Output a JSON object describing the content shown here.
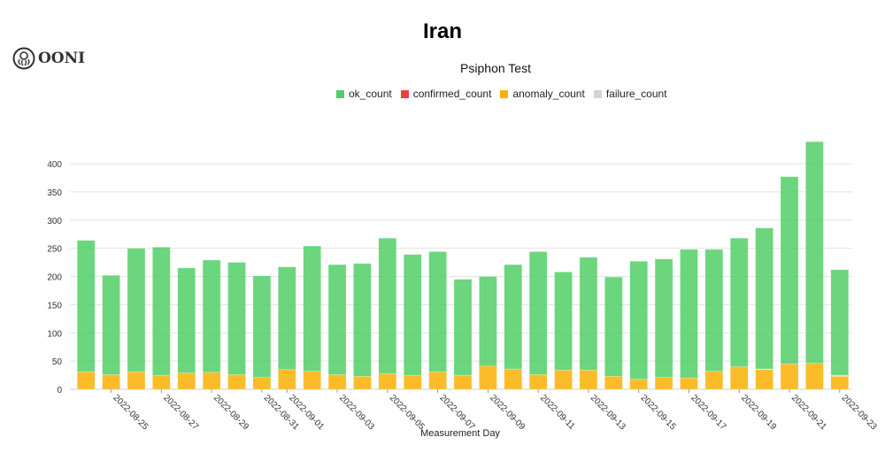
{
  "header": {
    "title": "Iran",
    "subtitle": "Psiphon Test",
    "logo_text": "OONI"
  },
  "chart_data": {
    "type": "bar",
    "stacked": true,
    "title": "Iran",
    "subtitle": "Psiphon Test",
    "xlabel": "Measurement Day",
    "ylabel": "",
    "ylim": [
      0,
      450
    ],
    "yticks": [
      0,
      50,
      100,
      150,
      200,
      250,
      300,
      350,
      400
    ],
    "grid": true,
    "legend_position": "top",
    "categories": [
      "2022-08-24",
      "2022-08-25",
      "2022-08-26",
      "2022-08-27",
      "2022-08-28",
      "2022-08-29",
      "2022-08-30",
      "2022-08-31",
      "2022-09-01",
      "2022-09-02",
      "2022-09-03",
      "2022-09-04",
      "2022-09-05",
      "2022-09-06",
      "2022-09-07",
      "2022-09-08",
      "2022-09-09",
      "2022-09-10",
      "2022-09-11",
      "2022-09-12",
      "2022-09-13",
      "2022-09-14",
      "2022-09-15",
      "2022-09-16",
      "2022-09-17",
      "2022-09-18",
      "2022-09-19",
      "2022-09-20",
      "2022-09-21",
      "2022-09-22",
      "2022-09-23"
    ],
    "xtick_labels": [
      "2022-08-25",
      "2022-08-27",
      "2022-08-29",
      "2022-08-31",
      "2022-09-01",
      "2022-09-03",
      "2022-09-05",
      "2022-09-07",
      "2022-09-09",
      "2022-09-11",
      "2022-09-13",
      "2022-09-15",
      "2022-09-17",
      "2022-09-19",
      "2022-09-21",
      "2022-09-23"
    ],
    "series": [
      {
        "name": "anomaly_count",
        "color": "#fab005",
        "values": [
          31,
          26,
          31,
          25,
          29,
          30,
          26,
          21,
          35,
          32,
          26,
          23,
          28,
          25,
          31,
          25,
          41,
          36,
          26,
          34,
          34,
          23,
          18,
          21,
          20,
          32,
          40,
          35,
          45,
          46,
          23
        ]
      },
      {
        "name": "confirmed_count",
        "color": "#f03e3e",
        "values": [
          0,
          0,
          0,
          0,
          0,
          0,
          0,
          0,
          0,
          0,
          0,
          0,
          0,
          0,
          0,
          0,
          0,
          0,
          0,
          0,
          0,
          0,
          0,
          0,
          0,
          0,
          0,
          0,
          0,
          0,
          0
        ]
      },
      {
        "name": "failure_count",
        "color": "#ced4da",
        "values": [
          0,
          0,
          0,
          0,
          0,
          0,
          0,
          0,
          0,
          0,
          0,
          0,
          0,
          0,
          0,
          0,
          0,
          0,
          0,
          0,
          0,
          0,
          0,
          0,
          0,
          0,
          0,
          1,
          0,
          0,
          2
        ]
      },
      {
        "name": "ok_count",
        "color": "#51cf66",
        "values": [
          233,
          176,
          219,
          227,
          186,
          199,
          199,
          180,
          182,
          222,
          195,
          200,
          240,
          214,
          213,
          170,
          159,
          185,
          218,
          174,
          200,
          176,
          209,
          210,
          228,
          216,
          228,
          250,
          332,
          393,
          187
        ]
      }
    ],
    "legend": [
      "ok_count",
      "confirmed_count",
      "anomaly_count",
      "failure_count"
    ]
  }
}
